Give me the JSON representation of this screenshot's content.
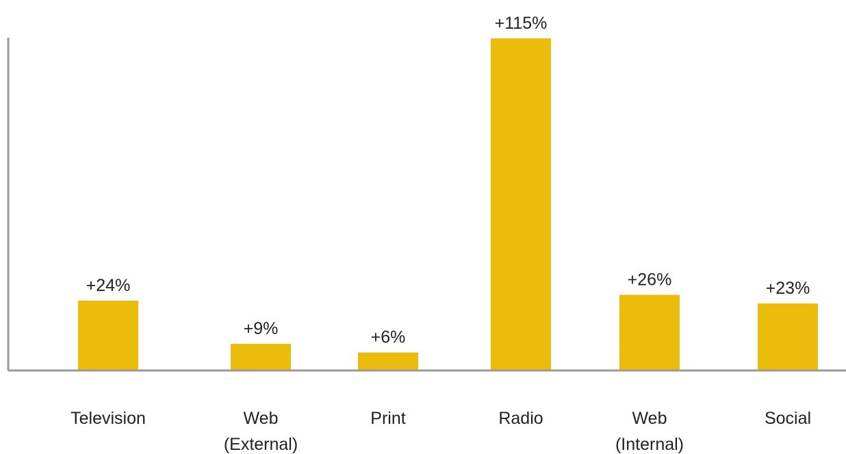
{
  "chart_data": {
    "type": "bar",
    "categories": [
      "Television",
      "Web\n(External)",
      "Print",
      "Radio",
      "Web\n(Internal)",
      "Social"
    ],
    "values": [
      24,
      9,
      6,
      115,
      26,
      23
    ],
    "value_labels": [
      "+24%",
      "+9%",
      "+6%",
      "+115%",
      "+26%",
      "+23%"
    ],
    "title": "",
    "xlabel": "",
    "ylabel": "",
    "ylim": [
      0,
      115
    ],
    "grid": false,
    "bar_color": "#ecbc0c",
    "axis_color": "#9a9a9a"
  }
}
